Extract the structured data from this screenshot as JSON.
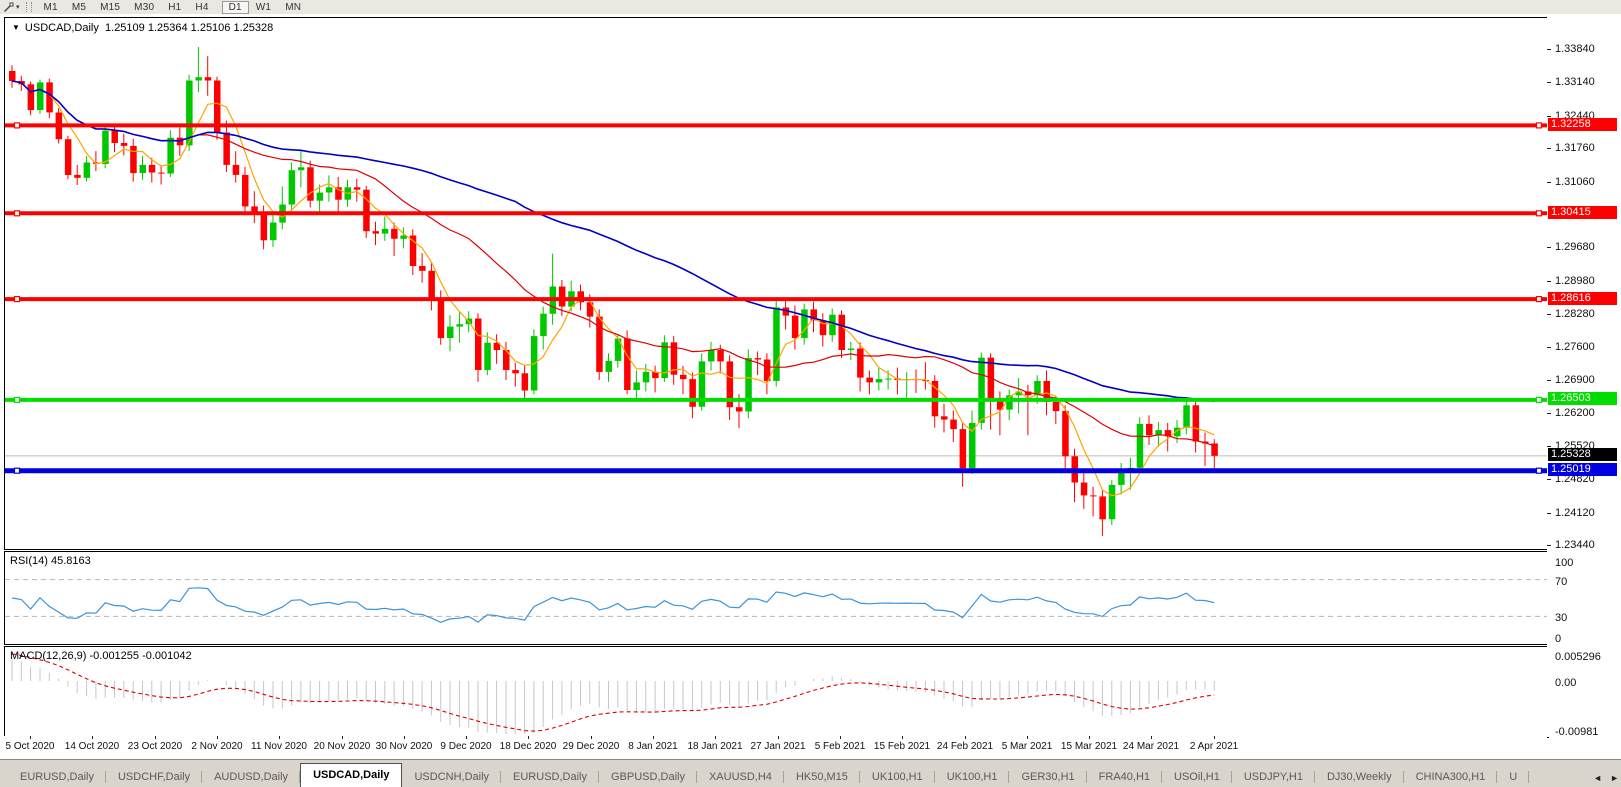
{
  "window": {
    "title_symbol": "USDCAD,Daily",
    "title_ohlc": "1.25109 1.25364 1.25106 1.25328"
  },
  "icons": {
    "title_arrow": "▼",
    "tool_dropdown_arrow": "▾",
    "scroll_left": "◄",
    "scroll_right": "►"
  },
  "toolbar": {
    "timeframes": [
      "M1",
      "M5",
      "M15",
      "M30",
      "H1",
      "H4",
      "D1",
      "W1",
      "MN"
    ],
    "active": "D1"
  },
  "price_axis": {
    "ticks": [
      "1.33840",
      "1.33140",
      "1.32440",
      "1.31760",
      "1.31060",
      "1.29680",
      "1.28980",
      "1.28280",
      "1.27600",
      "1.26900",
      "1.26200",
      "1.25520",
      "1.24820",
      "1.24120",
      "1.23440"
    ],
    "lines": [
      {
        "price": 1.32258,
        "label": "1.32258",
        "color": "#FF0000",
        "width": 4
      },
      {
        "price": 1.30415,
        "label": "1.30415",
        "color": "#FF0000",
        "width": 4
      },
      {
        "price": 1.28616,
        "label": "1.28616",
        "color": "#FF0000",
        "width": 4
      },
      {
        "price": 1.26503,
        "label": "1.26503",
        "color": "#00DD00",
        "width": 4
      },
      {
        "price": 1.25019,
        "label": "1.25019",
        "color": "#0000E0",
        "width": 5
      }
    ],
    "current": {
      "price": 1.25328,
      "label": "1.25328",
      "line_color": "#BBBBBB",
      "badge_bg": "#000000"
    }
  },
  "rsi_panel": {
    "name": "RSI(14)",
    "value": "45.8163",
    "period": 14,
    "levels": [
      70,
      30
    ],
    "axis": [
      "100",
      "70",
      "30",
      "0"
    ],
    "color": "#3A94D8"
  },
  "macd_panel": {
    "name": "MACD(12,26,9)",
    "values": "-0.001255 -0.001042",
    "fast": 12,
    "slow": 26,
    "signal": 9,
    "axis_top": "0.005296",
    "axis_zero": "0.00",
    "axis_bottom": "-0.00981",
    "hist_color": "#C6C6C6",
    "signal_color": "#DD0000"
  },
  "date_axis": {
    "labels": [
      "5 Oct 2020",
      "14 Oct 2020",
      "23 Oct 2020",
      "2 Nov 2020",
      "11 Nov 2020",
      "20 Nov 2020",
      "30 Nov 2020",
      "9 Dec 2020",
      "18 Dec 2020",
      "29 Dec 2020",
      "8 Jan 2021",
      "18 Jan 2021",
      "27 Jan 2021",
      "5 Feb 2021",
      "15 Feb 2021",
      "24 Feb 2021",
      "5 Mar 2021",
      "15 Mar 2021",
      "24 Mar 2021",
      "2 Apr 2021"
    ]
  },
  "tabs": {
    "items": [
      "EURUSD,Daily",
      "USDCHF,Daily",
      "AUDUSD,Daily",
      "USDCAD,Daily",
      "USDCNH,Daily",
      "EURUSD,Daily",
      "GBPUSD,Daily",
      "XAUUSD,H4",
      "HK50,M15",
      "UK100,H1",
      "UK100,H1",
      "GER30,H1",
      "FRA40,H1",
      "USOil,H1",
      "USDJPY,H1",
      "DJ30,Weekly",
      "CHINA300,H1",
      "U"
    ],
    "active_index": 3
  },
  "chart_data": {
    "type": "candlestick",
    "symbol": "USDCAD",
    "timeframe": "Daily",
    "title": "USDCAD,Daily 1.25109 1.25364 1.25106 1.25328",
    "x_range": [
      "1 Oct 2020",
      "2 Apr 2021"
    ],
    "y_range": [
      1.234,
      1.3449
    ],
    "grid": false,
    "bull_color": "#00C800",
    "bear_color": "#FF0000",
    "moving_averages": [
      {
        "name": "fast-ma",
        "period": 5,
        "color": "#FFA500"
      },
      {
        "name": "mid-ma",
        "period": 21,
        "color": "#E00000"
      },
      {
        "name": "slow-ma",
        "period": 55,
        "color": "#0000C8"
      }
    ],
    "candles": [
      [
        1.334,
        1.3352,
        1.3305,
        1.3319
      ],
      [
        1.3319,
        1.333,
        1.3298,
        1.3312
      ],
      [
        1.3312,
        1.3318,
        1.3247,
        1.3258
      ],
      [
        1.3258,
        1.3322,
        1.325,
        1.3316
      ],
      [
        1.3316,
        1.3324,
        1.3241,
        1.3253
      ],
      [
        1.3253,
        1.3262,
        1.3188,
        1.3197
      ],
      [
        1.3197,
        1.3204,
        1.3113,
        1.3122
      ],
      [
        1.3122,
        1.3143,
        1.3101,
        1.3116
      ],
      [
        1.3116,
        1.3162,
        1.3108,
        1.3148
      ],
      [
        1.3148,
        1.3172,
        1.313,
        1.3145
      ],
      [
        1.3145,
        1.3226,
        1.3136,
        1.3215
      ],
      [
        1.3215,
        1.3229,
        1.317,
        1.3189
      ],
      [
        1.3189,
        1.3208,
        1.3163,
        1.3183
      ],
      [
        1.3183,
        1.3198,
        1.3108,
        1.3126
      ],
      [
        1.3126,
        1.3162,
        1.3112,
        1.3143
      ],
      [
        1.3143,
        1.3158,
        1.3106,
        1.3127
      ],
      [
        1.3127,
        1.3142,
        1.3102,
        1.3125
      ],
      [
        1.3125,
        1.3216,
        1.3118,
        1.32
      ],
      [
        1.32,
        1.3222,
        1.3162,
        1.3184
      ],
      [
        1.3184,
        1.3332,
        1.3172,
        1.332
      ],
      [
        1.332,
        1.339,
        1.3296,
        1.3327
      ],
      [
        1.3327,
        1.3371,
        1.3288,
        1.332
      ],
      [
        1.332,
        1.3328,
        1.3196,
        1.3211
      ],
      [
        1.3211,
        1.3236,
        1.3128,
        1.3143
      ],
      [
        1.3143,
        1.3172,
        1.3106,
        1.3122
      ],
      [
        1.3122,
        1.3139,
        1.3042,
        1.3056
      ],
      [
        1.3056,
        1.3088,
        1.3021,
        1.3042
      ],
      [
        1.3042,
        1.3058,
        1.2966,
        1.2985
      ],
      [
        1.2985,
        1.3038,
        1.2971,
        1.3022
      ],
      [
        1.3022,
        1.3098,
        1.3008,
        1.306
      ],
      [
        1.306,
        1.3148,
        1.3047,
        1.3132
      ],
      [
        1.3132,
        1.3172,
        1.3096,
        1.3138
      ],
      [
        1.3138,
        1.3152,
        1.3054,
        1.3068
      ],
      [
        1.3068,
        1.3102,
        1.3042,
        1.3085
      ],
      [
        1.3085,
        1.3121,
        1.3066,
        1.3096
      ],
      [
        1.3096,
        1.3118,
        1.3043,
        1.307
      ],
      [
        1.307,
        1.3112,
        1.3055,
        1.3096
      ],
      [
        1.3096,
        1.3114,
        1.3066,
        1.3091
      ],
      [
        1.3091,
        1.3099,
        1.299,
        1.3004
      ],
      [
        1.3004,
        1.3024,
        1.2975,
        1.2999
      ],
      [
        1.2999,
        1.3035,
        1.2984,
        1.3009
      ],
      [
        1.3009,
        1.3022,
        1.2952,
        1.2988
      ],
      [
        1.2988,
        1.3012,
        1.2968,
        1.2995
      ],
      [
        1.2995,
        1.3008,
        1.2912,
        1.2931
      ],
      [
        1.2931,
        1.2958,
        1.2896,
        1.2921
      ],
      [
        1.2921,
        1.2937,
        1.2838,
        1.2863
      ],
      [
        1.2863,
        1.288,
        1.2766,
        1.278
      ],
      [
        1.278,
        1.2828,
        1.2752,
        1.2804
      ],
      [
        1.2804,
        1.2834,
        1.277,
        1.2809
      ],
      [
        1.2809,
        1.2836,
        1.2792,
        1.2821
      ],
      [
        1.2821,
        1.2832,
        1.2688,
        1.2713
      ],
      [
        1.2713,
        1.2792,
        1.2702,
        1.277
      ],
      [
        1.277,
        1.2788,
        1.2726,
        1.2755
      ],
      [
        1.2755,
        1.2772,
        1.2692,
        1.2713
      ],
      [
        1.2713,
        1.2728,
        1.2678,
        1.2706
      ],
      [
        1.2706,
        1.2722,
        1.2652,
        1.267
      ],
      [
        1.267,
        1.2798,
        1.2662,
        1.2784
      ],
      [
        1.2784,
        1.2846,
        1.2756,
        1.2831
      ],
      [
        1.2831,
        1.2957,
        1.2808,
        1.2888
      ],
      [
        1.2888,
        1.2902,
        1.2826,
        1.2846
      ],
      [
        1.2846,
        1.29,
        1.2836,
        1.2878
      ],
      [
        1.2878,
        1.2892,
        1.2838,
        1.2855
      ],
      [
        1.2855,
        1.2872,
        1.2802,
        1.2825
      ],
      [
        1.2825,
        1.284,
        1.2692,
        1.2709
      ],
      [
        1.2709,
        1.2748,
        1.2688,
        1.2732
      ],
      [
        1.2732,
        1.2788,
        1.2718,
        1.2779
      ],
      [
        1.2779,
        1.2796,
        1.2662,
        1.2671
      ],
      [
        1.2671,
        1.2712,
        1.2652,
        1.2687
      ],
      [
        1.2687,
        1.2726,
        1.2668,
        1.2709
      ],
      [
        1.2709,
        1.2722,
        1.2666,
        1.2696
      ],
      [
        1.2696,
        1.2786,
        1.2688,
        1.2771
      ],
      [
        1.2771,
        1.2784,
        1.2682,
        1.2703
      ],
      [
        1.2703,
        1.2722,
        1.2662,
        1.2694
      ],
      [
        1.2694,
        1.2708,
        1.2612,
        1.2636
      ],
      [
        1.2636,
        1.2748,
        1.2628,
        1.2731
      ],
      [
        1.2731,
        1.2772,
        1.2712,
        1.2755
      ],
      [
        1.2755,
        1.2766,
        1.2706,
        1.2731
      ],
      [
        1.2731,
        1.2744,
        1.2608,
        1.2635
      ],
      [
        1.2635,
        1.2662,
        1.2591,
        1.2626
      ],
      [
        1.2626,
        1.2756,
        1.2612,
        1.2738
      ],
      [
        1.2738,
        1.2752,
        1.2702,
        1.2735
      ],
      [
        1.2735,
        1.2748,
        1.2662,
        1.269
      ],
      [
        1.269,
        1.286,
        1.2678,
        1.2844
      ],
      [
        1.2844,
        1.2862,
        1.2798,
        1.2827
      ],
      [
        1.2827,
        1.2848,
        1.2756,
        1.278
      ],
      [
        1.278,
        1.2852,
        1.2766,
        1.284
      ],
      [
        1.284,
        1.2856,
        1.2792,
        1.2817
      ],
      [
        1.2817,
        1.2832,
        1.2762,
        1.2786
      ],
      [
        1.2786,
        1.2842,
        1.2772,
        1.2829
      ],
      [
        1.2829,
        1.2838,
        1.2738,
        1.2755
      ],
      [
        1.2755,
        1.2772,
        1.2734,
        1.2758
      ],
      [
        1.2758,
        1.2771,
        1.2668,
        1.2697
      ],
      [
        1.2697,
        1.2712,
        1.2662,
        1.2687
      ],
      [
        1.2687,
        1.2718,
        1.267,
        1.2694
      ],
      [
        1.2694,
        1.2712,
        1.2672,
        1.2695
      ],
      [
        1.2695,
        1.2718,
        1.2662,
        1.2692
      ],
      [
        1.2692,
        1.2709,
        1.2655,
        1.2694
      ],
      [
        1.2694,
        1.2714,
        1.2665,
        1.2692
      ],
      [
        1.2692,
        1.273,
        1.2672,
        1.269
      ],
      [
        1.269,
        1.2702,
        1.2592,
        1.2616
      ],
      [
        1.2616,
        1.2642,
        1.2582,
        1.2609
      ],
      [
        1.2609,
        1.2628,
        1.2562,
        1.2589
      ],
      [
        1.2589,
        1.2602,
        1.2468,
        1.2507
      ],
      [
        1.2507,
        1.2628,
        1.2495,
        1.2602
      ],
      [
        1.2602,
        1.275,
        1.2588,
        1.2739
      ],
      [
        1.2739,
        1.2748,
        1.2588,
        1.2648
      ],
      [
        1.2648,
        1.2668,
        1.2576,
        1.263
      ],
      [
        1.263,
        1.2672,
        1.2608,
        1.266
      ],
      [
        1.266,
        1.2696,
        1.2622,
        1.2668
      ],
      [
        1.2668,
        1.2682,
        1.2576,
        1.266
      ],
      [
        1.266,
        1.2702,
        1.2642,
        1.269
      ],
      [
        1.269,
        1.2712,
        1.2618,
        1.2646
      ],
      [
        1.2646,
        1.2658,
        1.26,
        1.2627
      ],
      [
        1.2627,
        1.2639,
        1.2506,
        1.2532
      ],
      [
        1.2532,
        1.2548,
        1.2436,
        1.2477
      ],
      [
        1.2477,
        1.2502,
        1.2422,
        1.245
      ],
      [
        1.245,
        1.2468,
        1.2406,
        1.2448
      ],
      [
        1.2448,
        1.2462,
        1.2365,
        1.24
      ],
      [
        1.24,
        1.2482,
        1.2388,
        1.2472
      ],
      [
        1.2472,
        1.2518,
        1.2452,
        1.2501
      ],
      [
        1.2501,
        1.2529,
        1.2462,
        1.2508
      ],
      [
        1.2508,
        1.2614,
        1.2496,
        1.26
      ],
      [
        1.26,
        1.2618,
        1.2556,
        1.2576
      ],
      [
        1.2576,
        1.2604,
        1.2552,
        1.2587
      ],
      [
        1.2587,
        1.2602,
        1.2542,
        1.2574
      ],
      [
        1.2574,
        1.2608,
        1.256,
        1.2592
      ],
      [
        1.2592,
        1.2652,
        1.2578,
        1.2639
      ],
      [
        1.2639,
        1.265,
        1.254,
        1.2563
      ],
      [
        1.2563,
        1.2582,
        1.2512,
        1.2559
      ],
      [
        1.2559,
        1.2568,
        1.2502,
        1.2533
      ]
    ]
  }
}
